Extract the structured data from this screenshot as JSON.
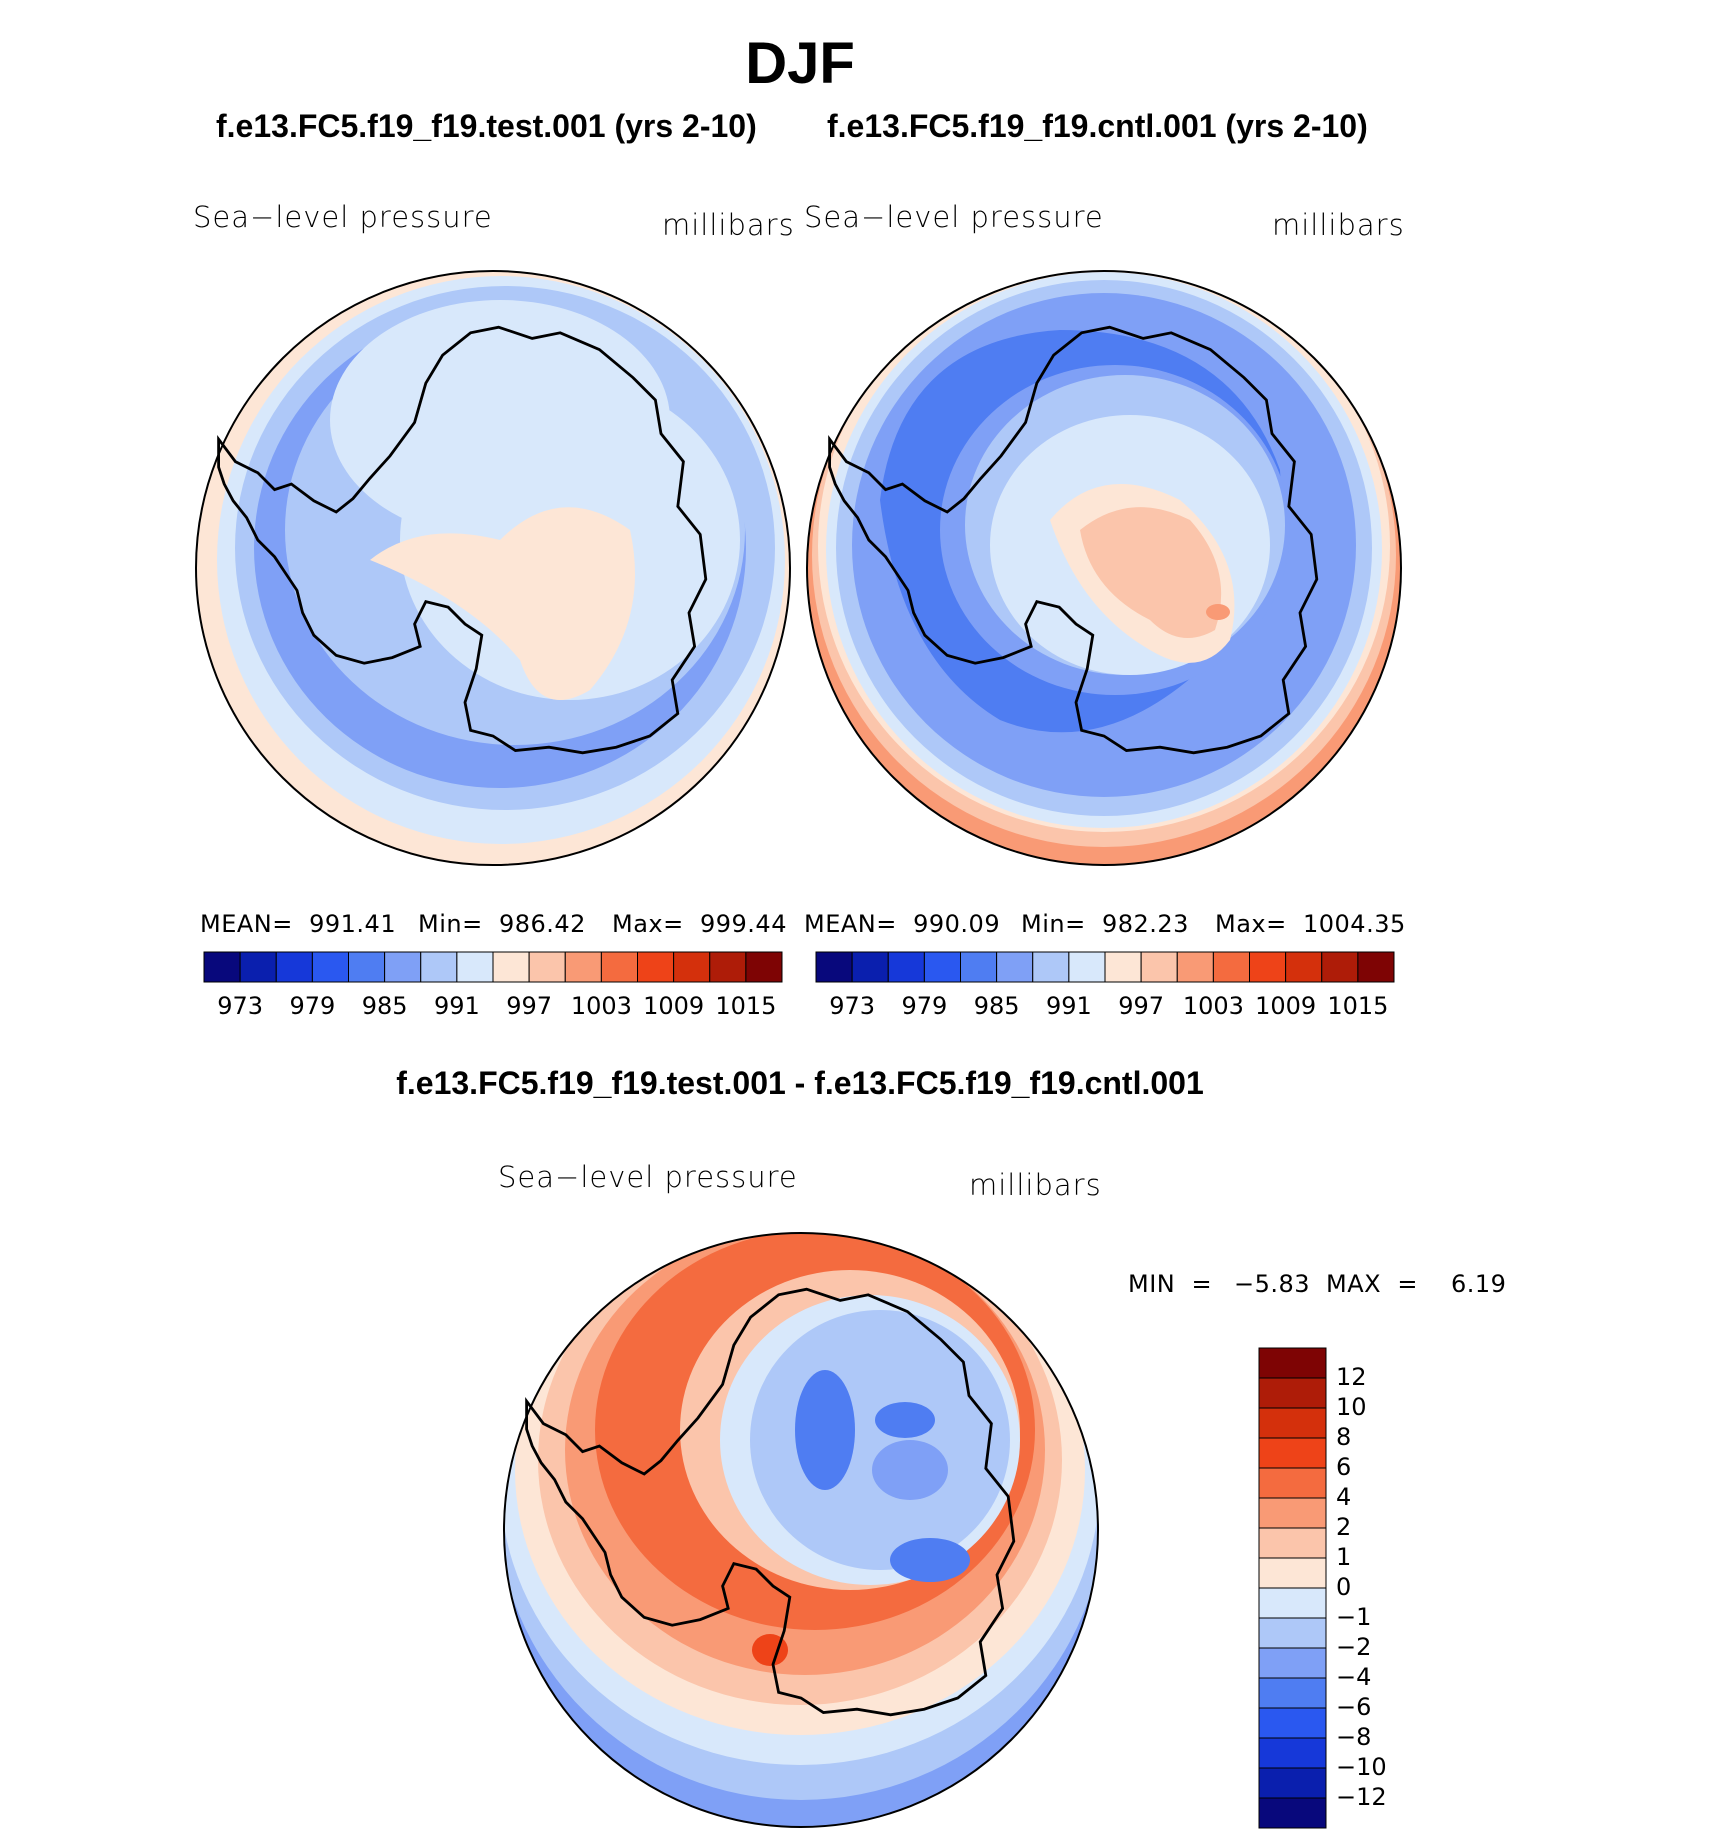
{
  "title": "DJF",
  "panels": {
    "test": {
      "run_title": "f.e13.FC5.f19_f19.test.001 (yrs 2-10)",
      "variable": "Sea−level pressure",
      "units": "millibars",
      "mean": "MEAN=  991.41",
      "min": "Min=  986.42",
      "max": "Max=  999.44"
    },
    "control": {
      "run_title": "f.e13.FC5.f19_f19.cntl.001 (yrs 2-10)",
      "variable": "Sea−level pressure",
      "units": "millibars",
      "mean": "MEAN=  990.09",
      "min": "Min=  982.23",
      "max": "Max=  1004.35"
    },
    "difference": {
      "title": "f.e13.FC5.f19_f19.test.001 - f.e13.FC5.f19_f19.cntl.001",
      "variable": "Sea−level pressure",
      "units": "millibars",
      "min_label": "MIN  =",
      "min_value": "−5.83",
      "max_label": "MAX  =",
      "max_value": "6.19"
    }
  },
  "chart_data": [
    {
      "type": "heatmap",
      "projection": "south-polar-stereographic",
      "title": "f.e13.FC5.f19_f19.test.001 (yrs 2-10)",
      "variable": "Sea-level pressure",
      "units": "millibars",
      "mean": 991.41,
      "min": 986.42,
      "max": 999.44,
      "contour_levels": [
        973,
        976,
        979,
        982,
        985,
        988,
        991,
        994,
        997,
        1000,
        1003,
        1006,
        1009,
        1012,
        1015
      ],
      "colorbar_labels": [
        "973",
        "979",
        "985",
        "991",
        "997",
        "1003",
        "1009",
        "1015"
      ],
      "colorbar_colors": [
        "#08087c",
        "#0a1fae",
        "#1638d9",
        "#2a58f0",
        "#4f7df2",
        "#7fa0f6",
        "#aec8f8",
        "#d8e8fb",
        "#fde6d6",
        "#fbc5ab",
        "#f99a75",
        "#f46b3f",
        "#ee4318",
        "#d4300c",
        "#ae1c08",
        "#7e0404"
      ],
      "colorbar_orientation": "horizontal"
    },
    {
      "type": "heatmap",
      "projection": "south-polar-stereographic",
      "title": "f.e13.FC5.f19_f19.cntl.001 (yrs 2-10)",
      "variable": "Sea-level pressure",
      "units": "millibars",
      "mean": 990.09,
      "min": 982.23,
      "max": 1004.35,
      "contour_levels": [
        973,
        976,
        979,
        982,
        985,
        988,
        991,
        994,
        997,
        1000,
        1003,
        1006,
        1009,
        1012,
        1015
      ],
      "colorbar_labels": [
        "973",
        "979",
        "985",
        "991",
        "997",
        "1003",
        "1009",
        "1015"
      ],
      "colorbar_colors": [
        "#08087c",
        "#0a1fae",
        "#1638d9",
        "#2a58f0",
        "#4f7df2",
        "#7fa0f6",
        "#aec8f8",
        "#d8e8fb",
        "#fde6d6",
        "#fbc5ab",
        "#f99a75",
        "#f46b3f",
        "#ee4318",
        "#d4300c",
        "#ae1c08",
        "#7e0404"
      ],
      "colorbar_orientation": "horizontal"
    },
    {
      "type": "heatmap",
      "projection": "south-polar-stereographic",
      "title": "f.e13.FC5.f19_f19.test.001 - f.e13.FC5.f19_f19.cntl.001",
      "variable": "Sea-level pressure",
      "units": "millibars",
      "min": -5.83,
      "max": 6.19,
      "contour_levels": [
        -12,
        -10,
        -8,
        -6,
        -4,
        -2,
        -1,
        0,
        1,
        2,
        4,
        6,
        8,
        10,
        12
      ],
      "colorbar_labels": [
        "12",
        "10",
        "8",
        "6",
        "4",
        "2",
        "1",
        "0",
        "−1",
        "−2",
        "−4",
        "−6",
        "−8",
        "−10",
        "−12"
      ],
      "colorbar_colors": [
        "#7e0404",
        "#ae1c08",
        "#d4300c",
        "#ee4318",
        "#f46b3f",
        "#f99a75",
        "#fbc5ab",
        "#fde6d6",
        "#d8e8fb",
        "#aec8f8",
        "#7fa0f6",
        "#4f7df2",
        "#2a58f0",
        "#1638d9",
        "#0a1fae",
        "#08087c"
      ],
      "colorbar_orientation": "vertical"
    }
  ]
}
